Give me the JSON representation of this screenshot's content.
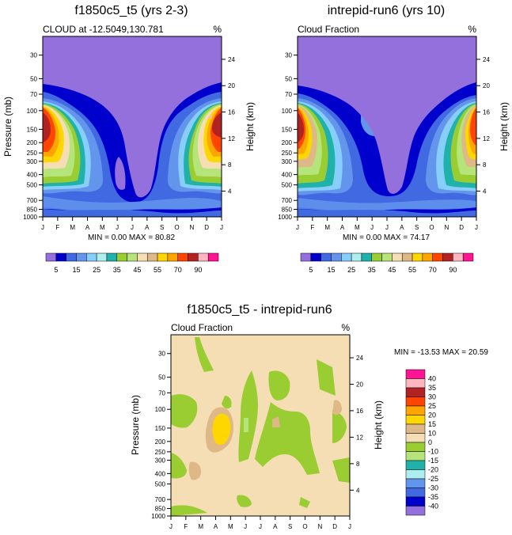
{
  "figure_domain": "Chart",
  "chart_data": [
    {
      "type": "contour",
      "title": "f1850c5_t5 (yrs 2-3)",
      "subtitle_left": "CLOUD at -12.5049,130.781",
      "subtitle_right": "%",
      "xlabel": "",
      "ylabel": "Pressure (mb)",
      "ylabel_right": "Height (km)",
      "x_ticks": [
        "J",
        "F",
        "M",
        "A",
        "M",
        "J",
        "J",
        "A",
        "S",
        "O",
        "N",
        "D",
        "J"
      ],
      "y_ticks": [
        30,
        50,
        70,
        100,
        150,
        200,
        250,
        300,
        400,
        500,
        700,
        850,
        1000
      ],
      "y_scale": "log",
      "ylim": [
        1000,
        20
      ],
      "height_ticks": [
        4,
        8,
        12,
        16,
        20,
        24
      ],
      "stats": "MIN =  0.00 MAX =  80.82",
      "stats_values": {
        "min": 0.0,
        "max": 80.82
      },
      "levels": [
        5,
        10,
        15,
        20,
        25,
        30,
        35,
        40,
        45,
        50,
        55,
        60,
        70,
        80,
        90
      ],
      "colorbar_labels": [
        "5",
        "15",
        "25",
        "35",
        "45",
        "55",
        "70",
        "90"
      ],
      "colors": [
        "#9370db",
        "#0000cd",
        "#4169e1",
        "#6495ed",
        "#87cefa",
        "#afeeee",
        "#20b2aa",
        "#9acd32",
        "#b4e47a",
        "#f5deb3",
        "#deb887",
        "#ffd700",
        "#ffa500",
        "#ff4500",
        "#b22222",
        "#ffb6c1",
        "#ff1493"
      ],
      "legend_position": "bottom"
    },
    {
      "type": "contour",
      "title": "intrepid-run6 (yrs 10)",
      "subtitle_left": "Cloud Fraction",
      "subtitle_right": "%",
      "xlabel": "",
      "ylabel": "",
      "ylabel_right": "Height (km)",
      "x_ticks": [
        "J",
        "F",
        "M",
        "A",
        "M",
        "J",
        "J",
        "A",
        "S",
        "O",
        "N",
        "D",
        "J"
      ],
      "y_ticks": [
        30,
        50,
        70,
        100,
        150,
        200,
        250,
        300,
        400,
        500,
        700,
        850,
        1000
      ],
      "y_scale": "log",
      "ylim": [
        1000,
        20
      ],
      "height_ticks": [
        4,
        8,
        12,
        16,
        20,
        24
      ],
      "stats": "MIN =  0.00 MAX =  74.17",
      "stats_values": {
        "min": 0.0,
        "max": 74.17
      },
      "levels": [
        5,
        10,
        15,
        20,
        25,
        30,
        35,
        40,
        45,
        50,
        55,
        60,
        70,
        80,
        90
      ],
      "colorbar_labels": [
        "5",
        "15",
        "25",
        "35",
        "45",
        "55",
        "70",
        "90"
      ],
      "colors": [
        "#9370db",
        "#0000cd",
        "#4169e1",
        "#6495ed",
        "#87cefa",
        "#afeeee",
        "#20b2aa",
        "#9acd32",
        "#b4e47a",
        "#f5deb3",
        "#deb887",
        "#ffd700",
        "#ffa500",
        "#ff4500",
        "#b22222",
        "#ffb6c1",
        "#ff1493"
      ],
      "legend_position": "bottom"
    },
    {
      "type": "contour",
      "title": "f1850c5_t5 - intrepid-run6",
      "subtitle_left": "Cloud Fraction",
      "subtitle_right": "%",
      "xlabel": "",
      "ylabel": "Pressure (mb)",
      "ylabel_right": "Height (km)",
      "x_ticks": [
        "J",
        "F",
        "M",
        "A",
        "M",
        "J",
        "J",
        "A",
        "S",
        "O",
        "N",
        "D",
        "J"
      ],
      "y_ticks": [
        30,
        50,
        70,
        100,
        150,
        200,
        250,
        300,
        400,
        500,
        700,
        850,
        1000
      ],
      "y_scale": "log",
      "ylim": [
        1000,
        20
      ],
      "height_ticks": [
        4,
        8,
        12,
        16,
        20,
        24
      ],
      "stats": "MIN = -13.53 MAX =  20.59",
      "stats_values": {
        "min": -13.53,
        "max": 20.59
      },
      "levels": [
        -40,
        -35,
        -30,
        -25,
        -20,
        -15,
        -10,
        0,
        10,
        15,
        20,
        25,
        30,
        35,
        40
      ],
      "colorbar_labels": [
        "40",
        "35",
        "30",
        "25",
        "20",
        "15",
        "10",
        "0",
        "-10",
        "-15",
        "-20",
        "-25",
        "-30",
        "-35",
        "-40"
      ],
      "colors": [
        "#ff1493",
        "#ffb6c1",
        "#b22222",
        "#ff4500",
        "#ffa500",
        "#ffd700",
        "#deb887",
        "#f5deb3",
        "#9acd32",
        "#b4e47a",
        "#20b2aa",
        "#afeeee",
        "#6495ed",
        "#4169e1",
        "#0000cd",
        "#9370db"
      ],
      "legend_position": "right"
    }
  ]
}
